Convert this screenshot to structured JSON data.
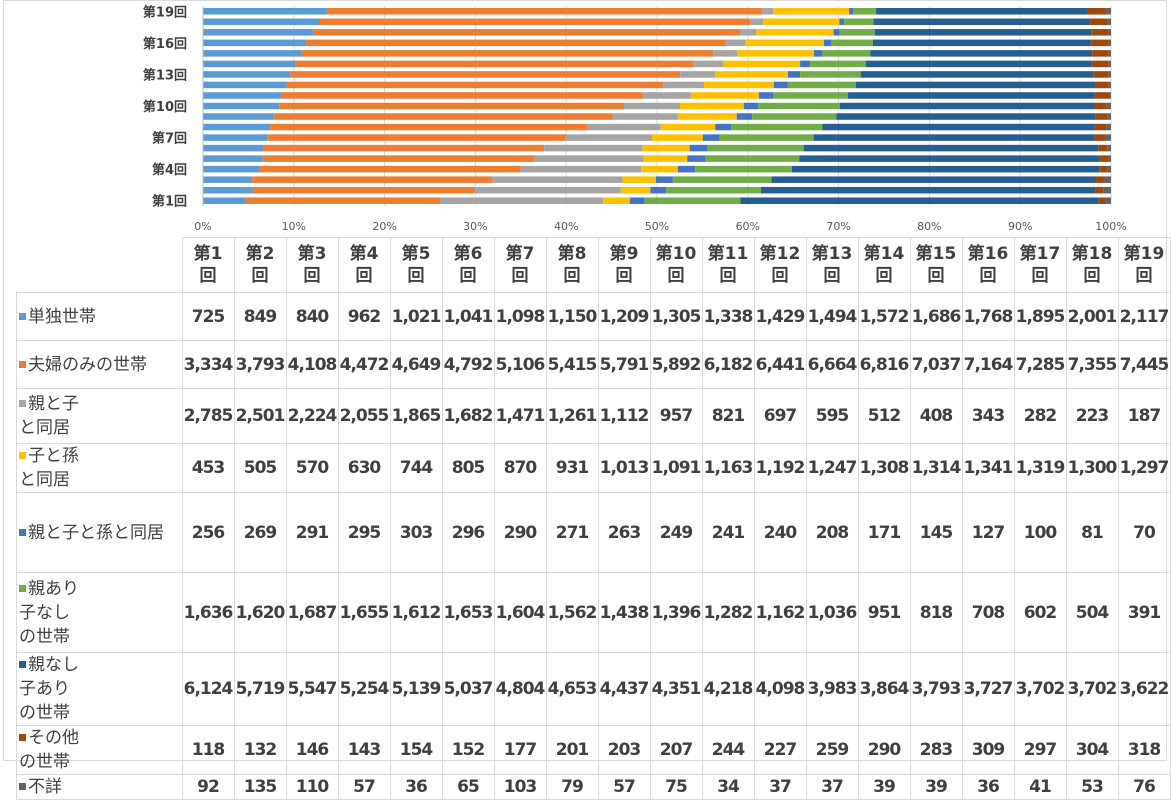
{
  "chart_data": {
    "type": "bar",
    "orientation": "horizontal",
    "stacked": "percent",
    "categories": [
      "第1回",
      "第2回",
      "第3回",
      "第4回",
      "第5回",
      "第6回",
      "第7回",
      "第8回",
      "第9回",
      "第10回",
      "第11回",
      "第12回",
      "第13回",
      "第14回",
      "第15回",
      "第16回",
      "第17回",
      "第18回",
      "第19回"
    ],
    "y_tick_labels": [
      "第1回",
      "第4回",
      "第7回",
      "第10回",
      "第13回",
      "第16回",
      "第19回"
    ],
    "x_ticks": [
      "0%",
      "10%",
      "20%",
      "30%",
      "40%",
      "50%",
      "60%",
      "70%",
      "80%",
      "90%",
      "100%"
    ],
    "xlim": [
      0,
      100
    ],
    "grid": true,
    "legend": "table-rows",
    "series": [
      {
        "name": "単独世帯",
        "color": "#5b9bd5",
        "values": [
          725,
          849,
          840,
          962,
          1021,
          1041,
          1098,
          1150,
          1209,
          1305,
          1338,
          1429,
          1494,
          1572,
          1686,
          1768,
          1895,
          2001,
          2117
        ]
      },
      {
        "name": "夫婦のみの世帯",
        "color": "#ed7d31",
        "values": [
          3334,
          3793,
          4108,
          4472,
          4649,
          4792,
          5106,
          5415,
          5791,
          5892,
          6182,
          6441,
          6664,
          6816,
          7037,
          7164,
          7285,
          7355,
          7445
        ]
      },
      {
        "name": "親と子\nと同居",
        "color": "#a5a5a5",
        "values": [
          2785,
          2501,
          2224,
          2055,
          1865,
          1682,
          1471,
          1261,
          1112,
          957,
          821,
          697,
          595,
          512,
          408,
          343,
          282,
          223,
          187
        ]
      },
      {
        "name": "子と孫\nと同居",
        "color": "#ffc000",
        "values": [
          453,
          505,
          570,
          630,
          744,
          805,
          870,
          931,
          1013,
          1091,
          1163,
          1192,
          1247,
          1308,
          1314,
          1341,
          1319,
          1300,
          1297
        ]
      },
      {
        "name": "親と子と孫と同居",
        "color": "#4472c4",
        "values": [
          256,
          269,
          291,
          295,
          303,
          296,
          290,
          271,
          263,
          249,
          241,
          240,
          208,
          171,
          145,
          127,
          100,
          81,
          70
        ]
      },
      {
        "name": "親あり\n 子なし\n の世帯",
        "color": "#70ad47",
        "values": [
          1636,
          1620,
          1687,
          1655,
          1612,
          1653,
          1604,
          1562,
          1438,
          1396,
          1282,
          1162,
          1036,
          951,
          818,
          708,
          602,
          504,
          391
        ]
      },
      {
        "name": "親なし\n 子あり\n の世帯",
        "color": "#255e91",
        "values": [
          6124,
          5719,
          5547,
          5254,
          5139,
          5037,
          4804,
          4653,
          4437,
          4351,
          4218,
          4098,
          3983,
          3864,
          3793,
          3727,
          3702,
          3702,
          3622
        ]
      },
      {
        "name": "その他\nの世帯",
        "color": "#9e480e",
        "values": [
          118,
          132,
          146,
          143,
          154,
          152,
          177,
          201,
          203,
          207,
          244,
          227,
          259,
          290,
          283,
          309,
          297,
          304,
          318
        ]
      },
      {
        "name": "不詳",
        "color": "#636363",
        "values": [
          92,
          135,
          110,
          57,
          36,
          65,
          103,
          79,
          57,
          75,
          34,
          37,
          37,
          39,
          39,
          36,
          41,
          53,
          76
        ]
      }
    ]
  },
  "table": {
    "headers": [
      "第1\n回",
      "第2\n回",
      "第3\n回",
      "第4\n回",
      "第5\n回",
      "第6\n回",
      "第7\n回",
      "第8\n回",
      "第9\n回",
      "第10\n回",
      "第11\n回",
      "第12\n回",
      "第13\n回",
      "第14\n回",
      "第15\n回",
      "第16\n回",
      "第17\n回",
      "第18\n回",
      "第19\n回"
    ]
  }
}
